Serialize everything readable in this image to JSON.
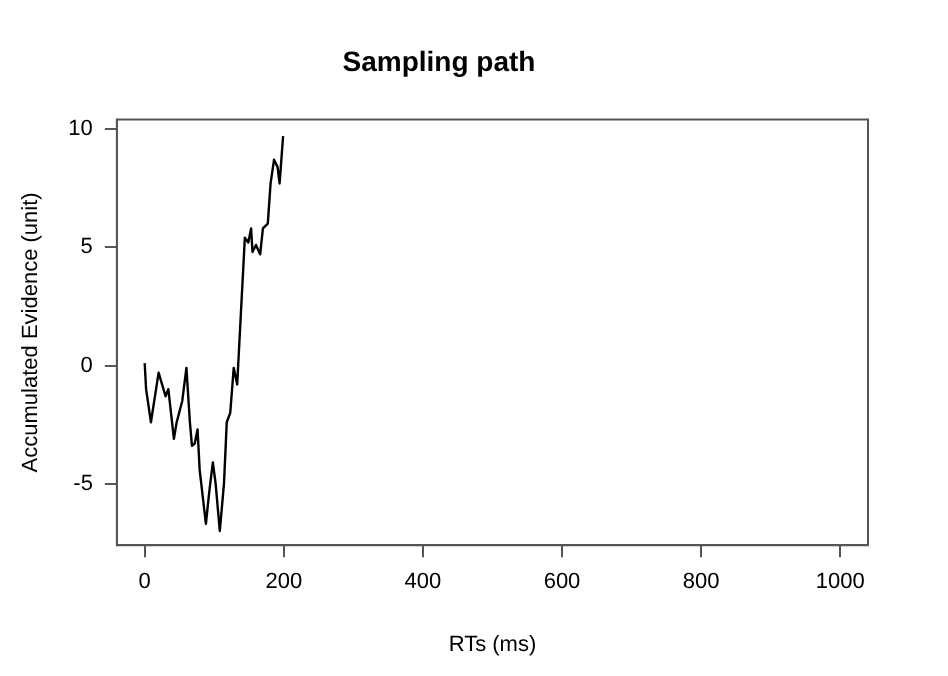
{
  "chart_data": {
    "type": "line",
    "title": "Sampling path",
    "xlabel": "RTs (ms)",
    "ylabel": "Accumulated Evidence (unit)",
    "x": [
      0,
      2,
      9,
      20,
      30,
      34,
      42,
      46,
      54,
      60,
      65,
      68,
      72,
      76,
      79,
      88,
      93,
      98,
      102,
      108,
      114,
      118,
      123,
      128,
      133,
      136,
      144,
      149,
      153,
      155,
      160,
      166,
      170,
      177,
      181,
      186,
      191,
      194,
      199
    ],
    "series": [
      {
        "color": "#000000",
        "values": [
          0.1,
          -1,
          -2.4,
          -0.3,
          -1.3,
          -1,
          -3.1,
          -2.4,
          -1.5,
          -0.1,
          -2.4,
          -3.4,
          -3.3,
          -2.7,
          -4.4,
          -6.7,
          -5.3,
          -4.1,
          -5,
          -7,
          -5,
          -2.4,
          -2,
          -0.1,
          -0.8,
          0.9,
          5.4,
          5.2,
          5.8,
          4.8,
          5.1,
          4.7,
          5.8,
          6,
          7.7,
          8.7,
          8.4,
          7.7,
          9.7
        ]
      }
    ],
    "xlim": [
      -40,
      1040
    ],
    "ylim": [
      -7.6,
      10.4
    ],
    "xticks": [
      0,
      200,
      400,
      600,
      800,
      1000
    ],
    "yticks": [
      -5,
      0,
      5,
      10
    ],
    "grid": false,
    "legend": false,
    "marker": "none",
    "line_style": "solid"
  }
}
